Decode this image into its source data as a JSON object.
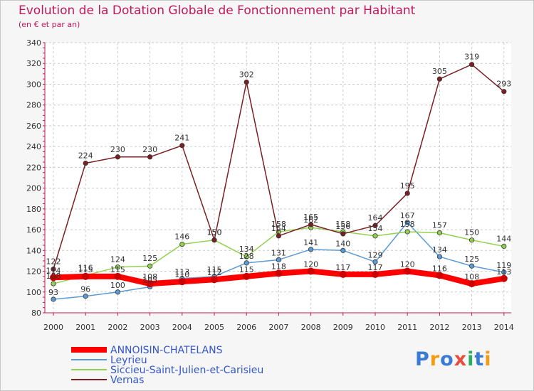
{
  "colors": {
    "title": "#c2185b",
    "grid": "#cccccc",
    "legend_text": "#3355cc"
  },
  "chart_data": {
    "type": "line",
    "title": "Evolution de la Dotation Globale de Fonctionnement par Habitant",
    "subtitle": "(en € et par an)",
    "x": [
      "2000",
      "2001",
      "2002",
      "2003",
      "2004",
      "2005",
      "2006",
      "2007",
      "2008",
      "2009",
      "2010",
      "2011",
      "2012",
      "2013",
      "2014"
    ],
    "ylim": [
      80,
      340
    ],
    "yticks": [
      80,
      100,
      120,
      140,
      160,
      180,
      200,
      220,
      240,
      260,
      280,
      300,
      320,
      340
    ],
    "grid": true,
    "legend_position": "bottom-left",
    "series": [
      {
        "name": "ANNOISIN-CHATELANS",
        "color": "#ff0000",
        "width": 8,
        "values": [
          114,
          115,
          115,
          108,
          110,
          112,
          115,
          118,
          120,
          117,
          117,
          120,
          116,
          108,
          113
        ]
      },
      {
        "name": "Leyrieu",
        "color": "#5b9bd5",
        "width": 1.5,
        "values": [
          93,
          96,
          100,
          105,
          113,
          115,
          128,
          131,
          141,
          140,
          129,
          167,
          134,
          125,
          119
        ]
      },
      {
        "name": "Siccieu-Saint-Julien-et-Carisieu",
        "color": "#92d050",
        "width": 1.5,
        "values": [
          108,
          116,
          124,
          125,
          146,
          150,
          134,
          158,
          162,
          158,
          154,
          158,
          157,
          150,
          144
        ]
      },
      {
        "name": "Vernas",
        "color": "#7b1f23",
        "width": 1.5,
        "values": [
          122,
          224,
          230,
          230,
          241,
          150,
          302,
          154,
          165,
          156,
          164,
          195,
          305,
          319,
          293
        ]
      }
    ],
    "data_labels": [
      [
        "114",
        "115",
        "115",
        "108",
        "110",
        "112",
        "115",
        "118",
        "120",
        "117",
        "117",
        "120",
        "116",
        "108",
        "113"
      ],
      [
        "93",
        "96",
        "100",
        "105",
        "113",
        "115",
        "128",
        "131",
        "141",
        "140",
        "129",
        "167",
        "134",
        "125",
        "119"
      ],
      [
        "108",
        "116",
        "124",
        "125",
        "146",
        "150",
        "134",
        "158",
        "162",
        "158",
        "154",
        "158",
        "157",
        "150",
        "144"
      ],
      [
        "122",
        "224",
        "230",
        "230",
        "241",
        "150",
        "302",
        "154",
        "165",
        "156",
        "164",
        "195",
        "305",
        "319",
        "293"
      ]
    ]
  },
  "brand": {
    "logo_letters": [
      "P",
      "r",
      "o",
      "x",
      "i",
      "t",
      "i"
    ],
    "logo_colors": [
      "#3a7bd5",
      "#f39c12",
      "#3a7bd5",
      "#e74c3c",
      "#27ae60",
      "#3a7bd5",
      "#f39c12"
    ]
  }
}
